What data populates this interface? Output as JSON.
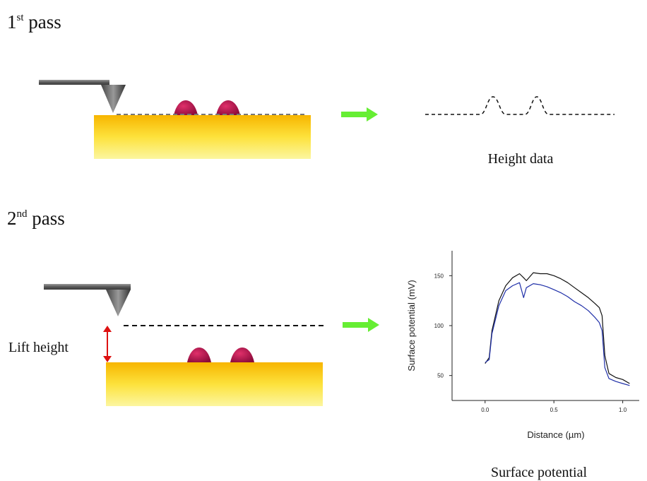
{
  "first_pass": {
    "number": "1",
    "suffix": "st",
    "word": "pass"
  },
  "height_label": "Height data",
  "second_pass": {
    "number": "2",
    "suffix": "nd",
    "word": "pass"
  },
  "lift_label": "Lift height",
  "potential_label": "Surface potential",
  "chart_data": {
    "type": "line",
    "xlabel": "Distance (µm)",
    "ylabel": "Surface potential (mV)",
    "xlim": [
      -0.24,
      1.12
    ],
    "ylim": [
      25,
      175
    ],
    "xticks": [
      {
        "value": 0,
        "label": "0.0"
      },
      0.5,
      {
        "value": 1,
        "label": "1.0"
      }
    ],
    "yticks": [
      50,
      100,
      150
    ],
    "x": [
      0.0,
      0.03,
      0.05,
      0.1,
      0.15,
      0.2,
      0.25,
      0.28,
      0.3,
      0.35,
      0.4,
      0.45,
      0.5,
      0.55,
      0.6,
      0.65,
      0.7,
      0.75,
      0.8,
      0.83,
      0.85,
      0.87,
      0.9,
      0.95,
      1.0,
      1.05
    ],
    "series": [
      {
        "color": "#111111",
        "values": [
          62,
          68,
          95,
          125,
          140,
          148,
          152,
          148,
          145,
          153,
          152,
          152,
          150,
          147,
          143,
          138,
          133,
          128,
          122,
          118,
          110,
          70,
          52,
          48,
          46,
          42
        ]
      },
      {
        "color": "#1f2fa8",
        "values": [
          63,
          66,
          92,
          120,
          135,
          140,
          143,
          128,
          138,
          142,
          141,
          139,
          136,
          133,
          129,
          124,
          120,
          115,
          108,
          103,
          95,
          58,
          47,
          44,
          42,
          40
        ]
      }
    ]
  }
}
